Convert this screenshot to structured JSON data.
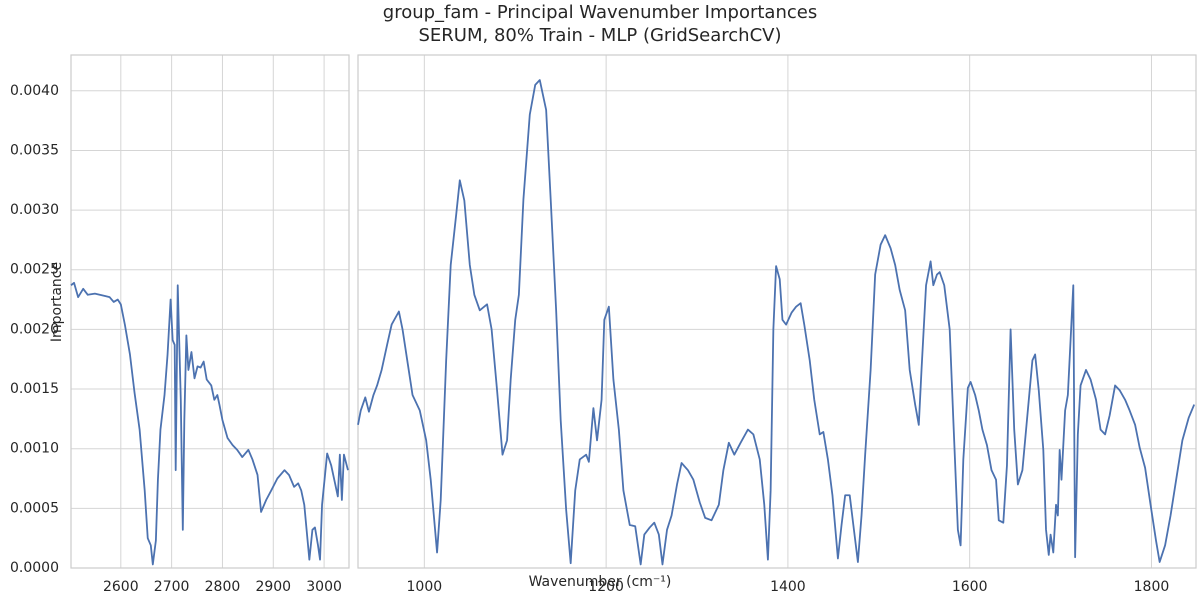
{
  "chart_data": [
    {
      "type": "line",
      "title": "group_fam - Principal Wavenumber Importances",
      "subtitle": "SERUM, 80% Train - MLP (GridSearchCV)",
      "xlabel": "Wavenumber (cm⁻¹)",
      "ylabel": "Importance",
      "color": "#4c72b0",
      "grid": true,
      "xlim": [
        2502,
        3049
      ],
      "xticks": [
        2600,
        2700,
        2800,
        2900,
        3000
      ],
      "ylim": [
        0,
        0.0043
      ],
      "yticks": [
        {
          "value": 0,
          "label": "0.0000"
        },
        {
          "value": 0.0005,
          "label": "0.0005"
        },
        {
          "value": 0.001,
          "label": "0.0010"
        },
        {
          "value": 0.0015,
          "label": "0.0015"
        },
        {
          "value": 0.002,
          "label": "0.0020"
        },
        {
          "value": 0.0025,
          "label": "0.0025"
        },
        {
          "value": 0.003,
          "label": "0.0030"
        },
        {
          "value": 0.0035,
          "label": "0.0035"
        },
        {
          "value": 0.004,
          "label": "0.0040"
        }
      ],
      "x": [
        2502,
        2508,
        2516,
        2526,
        2535,
        2549,
        2569,
        2578,
        2586,
        2594,
        2600,
        2608,
        2618,
        2627,
        2637,
        2647,
        2653,
        2659,
        2663,
        2669,
        2673,
        2678,
        2686,
        2692,
        2698,
        2702,
        2706,
        2708,
        2712,
        2718,
        2722,
        2725,
        2729,
        2733,
        2739,
        2745,
        2751,
        2757,
        2763,
        2769,
        2778,
        2784,
        2790,
        2794,
        2800,
        2810,
        2820,
        2829,
        2839,
        2851,
        2859,
        2869,
        2876,
        2886,
        2896,
        2908,
        2922,
        2931,
        2941,
        2949,
        2955,
        2961,
        2971,
        2977,
        2982,
        2988,
        2992,
        2996,
        3006,
        3014,
        3022,
        3027,
        3031,
        3035,
        3039,
        3047
      ],
      "values": [
        0.00237,
        0.00239,
        0.00227,
        0.00234,
        0.00229,
        0.0023,
        0.00228,
        0.00227,
        0.00223,
        0.00225,
        0.00221,
        0.00204,
        0.00179,
        0.00147,
        0.00116,
        0.00065,
        0.00025,
        0.00019,
        3e-05,
        0.00023,
        0.00074,
        0.00116,
        0.00145,
        0.00179,
        0.00225,
        0.00191,
        0.00187,
        0.00082,
        0.00237,
        0.00141,
        0.00032,
        0.00124,
        0.00195,
        0.00166,
        0.00181,
        0.00159,
        0.00169,
        0.00168,
        0.00173,
        0.00158,
        0.00153,
        0.00141,
        0.00145,
        0.00137,
        0.00124,
        0.00109,
        0.00103,
        0.00099,
        0.00093,
        0.00099,
        0.00091,
        0.00078,
        0.00047,
        0.00057,
        0.00065,
        0.00075,
        0.00082,
        0.00078,
        0.00068,
        0.00071,
        0.00065,
        0.00053,
        7e-05,
        0.00032,
        0.00034,
        0.00019,
        7e-05,
        0.00053,
        0.00096,
        0.00086,
        0.0007,
        0.0006,
        0.00095,
        0.00057,
        0.00095,
        0.00082
      ]
    },
    {
      "type": "line",
      "color": "#4c72b0",
      "grid": true,
      "xlim": [
        927,
        1849
      ],
      "xticks": [
        1000,
        1200,
        1400,
        1600,
        1800
      ],
      "x": [
        927,
        930,
        935,
        939,
        944,
        948,
        953,
        959,
        964,
        972,
        976,
        982,
        987,
        995,
        1002,
        1007,
        1014,
        1018,
        1024,
        1029,
        1035,
        1039,
        1044,
        1050,
        1055,
        1061,
        1069,
        1074,
        1080,
        1086,
        1091,
        1095,
        1100,
        1104,
        1109,
        1116,
        1122,
        1127,
        1134,
        1139,
        1145,
        1150,
        1156,
        1161,
        1166,
        1171,
        1178,
        1181,
        1186,
        1190,
        1195,
        1198,
        1203,
        1208,
        1214,
        1219,
        1226,
        1232,
        1238,
        1242,
        1248,
        1253,
        1258,
        1262,
        1267,
        1272,
        1278,
        1283,
        1290,
        1296,
        1303,
        1309,
        1316,
        1324,
        1329,
        1335,
        1341,
        1348,
        1356,
        1362,
        1369,
        1374,
        1378,
        1381,
        1384,
        1387,
        1391,
        1394,
        1398,
        1404,
        1409,
        1414,
        1418,
        1424,
        1429,
        1435,
        1439,
        1444,
        1449,
        1455,
        1459,
        1463,
        1468,
        1472,
        1477,
        1481,
        1485,
        1491,
        1496,
        1502,
        1507,
        1513,
        1518,
        1523,
        1529,
        1534,
        1540,
        1544,
        1547,
        1552,
        1557,
        1560,
        1564,
        1567,
        1572,
        1578,
        1582,
        1587,
        1590,
        1593,
        1598,
        1601,
        1606,
        1610,
        1614,
        1619,
        1624,
        1629,
        1632,
        1637,
        1641,
        1645,
        1649,
        1653,
        1658,
        1663,
        1669,
        1672,
        1676,
        1681,
        1684,
        1687,
        1689,
        1692,
        1695,
        1697,
        1699,
        1701,
        1705,
        1708,
        1714,
        1716,
        1719,
        1722,
        1728,
        1733,
        1739,
        1744,
        1749,
        1754,
        1760,
        1765,
        1771,
        1776,
        1782,
        1787,
        1793,
        1799,
        1805,
        1809,
        1815,
        1821,
        1828,
        1834,
        1841,
        1847
      ],
      "values": [
        0.0012,
        0.00132,
        0.00143,
        0.00131,
        0.00145,
        0.00153,
        0.00166,
        0.00187,
        0.00204,
        0.00215,
        0.002,
        0.0017,
        0.00145,
        0.00132,
        0.00107,
        0.00074,
        0.00013,
        0.00057,
        0.00174,
        0.00254,
        0.00296,
        0.00325,
        0.00308,
        0.00254,
        0.00229,
        0.00216,
        0.00221,
        0.002,
        0.00149,
        0.00095,
        0.00107,
        0.00158,
        0.00208,
        0.00229,
        0.00309,
        0.0038,
        0.00405,
        0.00409,
        0.00384,
        0.00309,
        0.00216,
        0.00124,
        0.00049,
        4e-05,
        0.00065,
        0.00091,
        0.00095,
        0.00089,
        0.00134,
        0.00107,
        0.00141,
        0.00208,
        0.00219,
        0.00158,
        0.00116,
        0.00065,
        0.00036,
        0.00035,
        3e-05,
        0.00028,
        0.00034,
        0.00038,
        0.00028,
        3e-05,
        0.00032,
        0.00044,
        0.0007,
        0.00088,
        0.00082,
        0.00074,
        0.00055,
        0.00042,
        0.0004,
        0.00053,
        0.00082,
        0.00105,
        0.00095,
        0.00105,
        0.00116,
        0.00112,
        0.00091,
        0.00053,
        7e-05,
        0.00065,
        0.002,
        0.00253,
        0.00242,
        0.00208,
        0.00204,
        0.00214,
        0.00219,
        0.00222,
        0.00204,
        0.00174,
        0.00141,
        0.00112,
        0.00114,
        0.00091,
        0.00061,
        8e-05,
        0.00036,
        0.00061,
        0.00061,
        0.00036,
        5e-05,
        0.00044,
        0.00095,
        0.00166,
        0.00246,
        0.00271,
        0.00279,
        0.00268,
        0.00254,
        0.00233,
        0.00216,
        0.00166,
        0.00137,
        0.0012,
        0.00166,
        0.00237,
        0.00257,
        0.00237,
        0.00246,
        0.00248,
        0.00237,
        0.002,
        0.00124,
        0.00032,
        0.00019,
        0.00091,
        0.00151,
        0.00156,
        0.00145,
        0.00132,
        0.00116,
        0.00103,
        0.00082,
        0.00074,
        0.0004,
        0.00038,
        0.00086,
        0.002,
        0.00116,
        0.0007,
        0.00082,
        0.00124,
        0.00174,
        0.00179,
        0.00149,
        0.00099,
        0.00032,
        0.00011,
        0.00028,
        0.00013,
        0.00053,
        0.00044,
        0.00099,
        0.00074,
        0.00132,
        0.00145,
        0.00237,
        9e-05,
        0.00112,
        0.00153,
        0.00166,
        0.00158,
        0.00141,
        0.00116,
        0.00112,
        0.00128,
        0.00153,
        0.00149,
        0.00141,
        0.00132,
        0.0012,
        0.00101,
        0.00084,
        0.00053,
        0.00023,
        5e-05,
        0.00019,
        0.00044,
        0.00078,
        0.00107,
        0.00126,
        0.00137
      ]
    }
  ]
}
